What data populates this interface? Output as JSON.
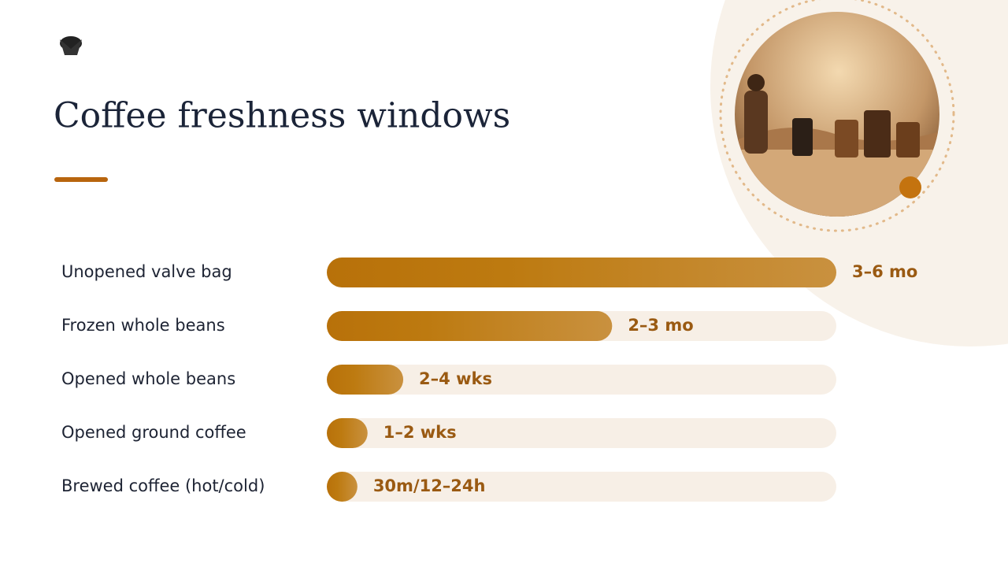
{
  "chart_data": {
    "type": "bar",
    "orientation": "horizontal",
    "title": "Coffee freshness windows",
    "categories": [
      "Unopened valve bag",
      "Frozen whole beans",
      "Opened whole beans",
      "Opened ground coffee",
      "Brewed coffee (hot/cold)"
    ],
    "values": [
      100,
      56,
      15,
      8,
      6
    ],
    "duration_labels": [
      "3–6 mo",
      "2–3 mo",
      "2–4 wks",
      "1–2 wks",
      "30m/12–24h"
    ],
    "xlim": [
      0,
      100
    ],
    "color": "#b8710a",
    "track_color": "#f7efe6",
    "label_color": "#9a5a12"
  }
}
